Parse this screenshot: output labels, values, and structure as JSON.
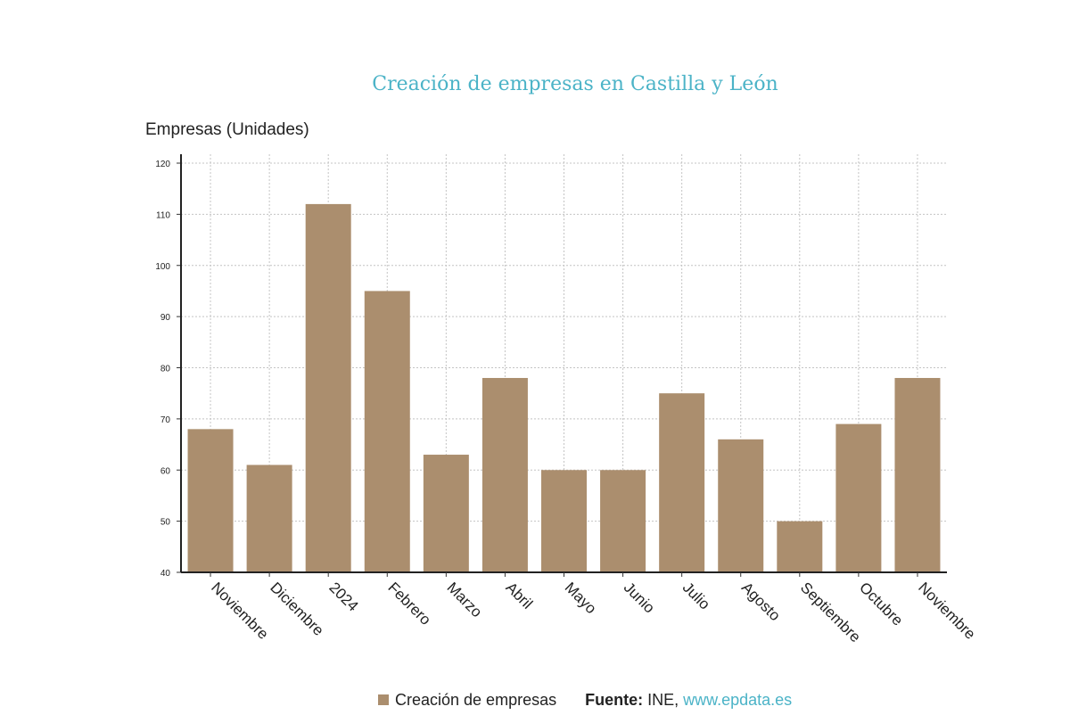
{
  "chart_data": {
    "type": "bar",
    "title": "Creación de empresas en Castilla y León",
    "ylabel": "Empresas (Unidades)",
    "xlabel": "",
    "categories": [
      "Noviembre",
      "Diciembre",
      "2024",
      "Febrero",
      "Marzo",
      "Abril",
      "Mayo",
      "Junio",
      "Julio",
      "Agosto",
      "Septiembre",
      "Octubre",
      "Noviembre"
    ],
    "series": [
      {
        "name": "Creación de empresas",
        "values": [
          68,
          61,
          112,
          95,
          63,
          78,
          60,
          60,
          75,
          66,
          50,
          69,
          78
        ],
        "color": "#ab8e6e"
      }
    ],
    "ylim": [
      40,
      120
    ],
    "yticks": [
      40,
      50,
      60,
      70,
      80,
      90,
      100,
      110,
      120
    ],
    "grid": true,
    "legend_position": "bottom"
  },
  "footer": {
    "source_key": "Fuente:",
    "source_value": " INE, ",
    "source_site": "www.epdata.es"
  }
}
